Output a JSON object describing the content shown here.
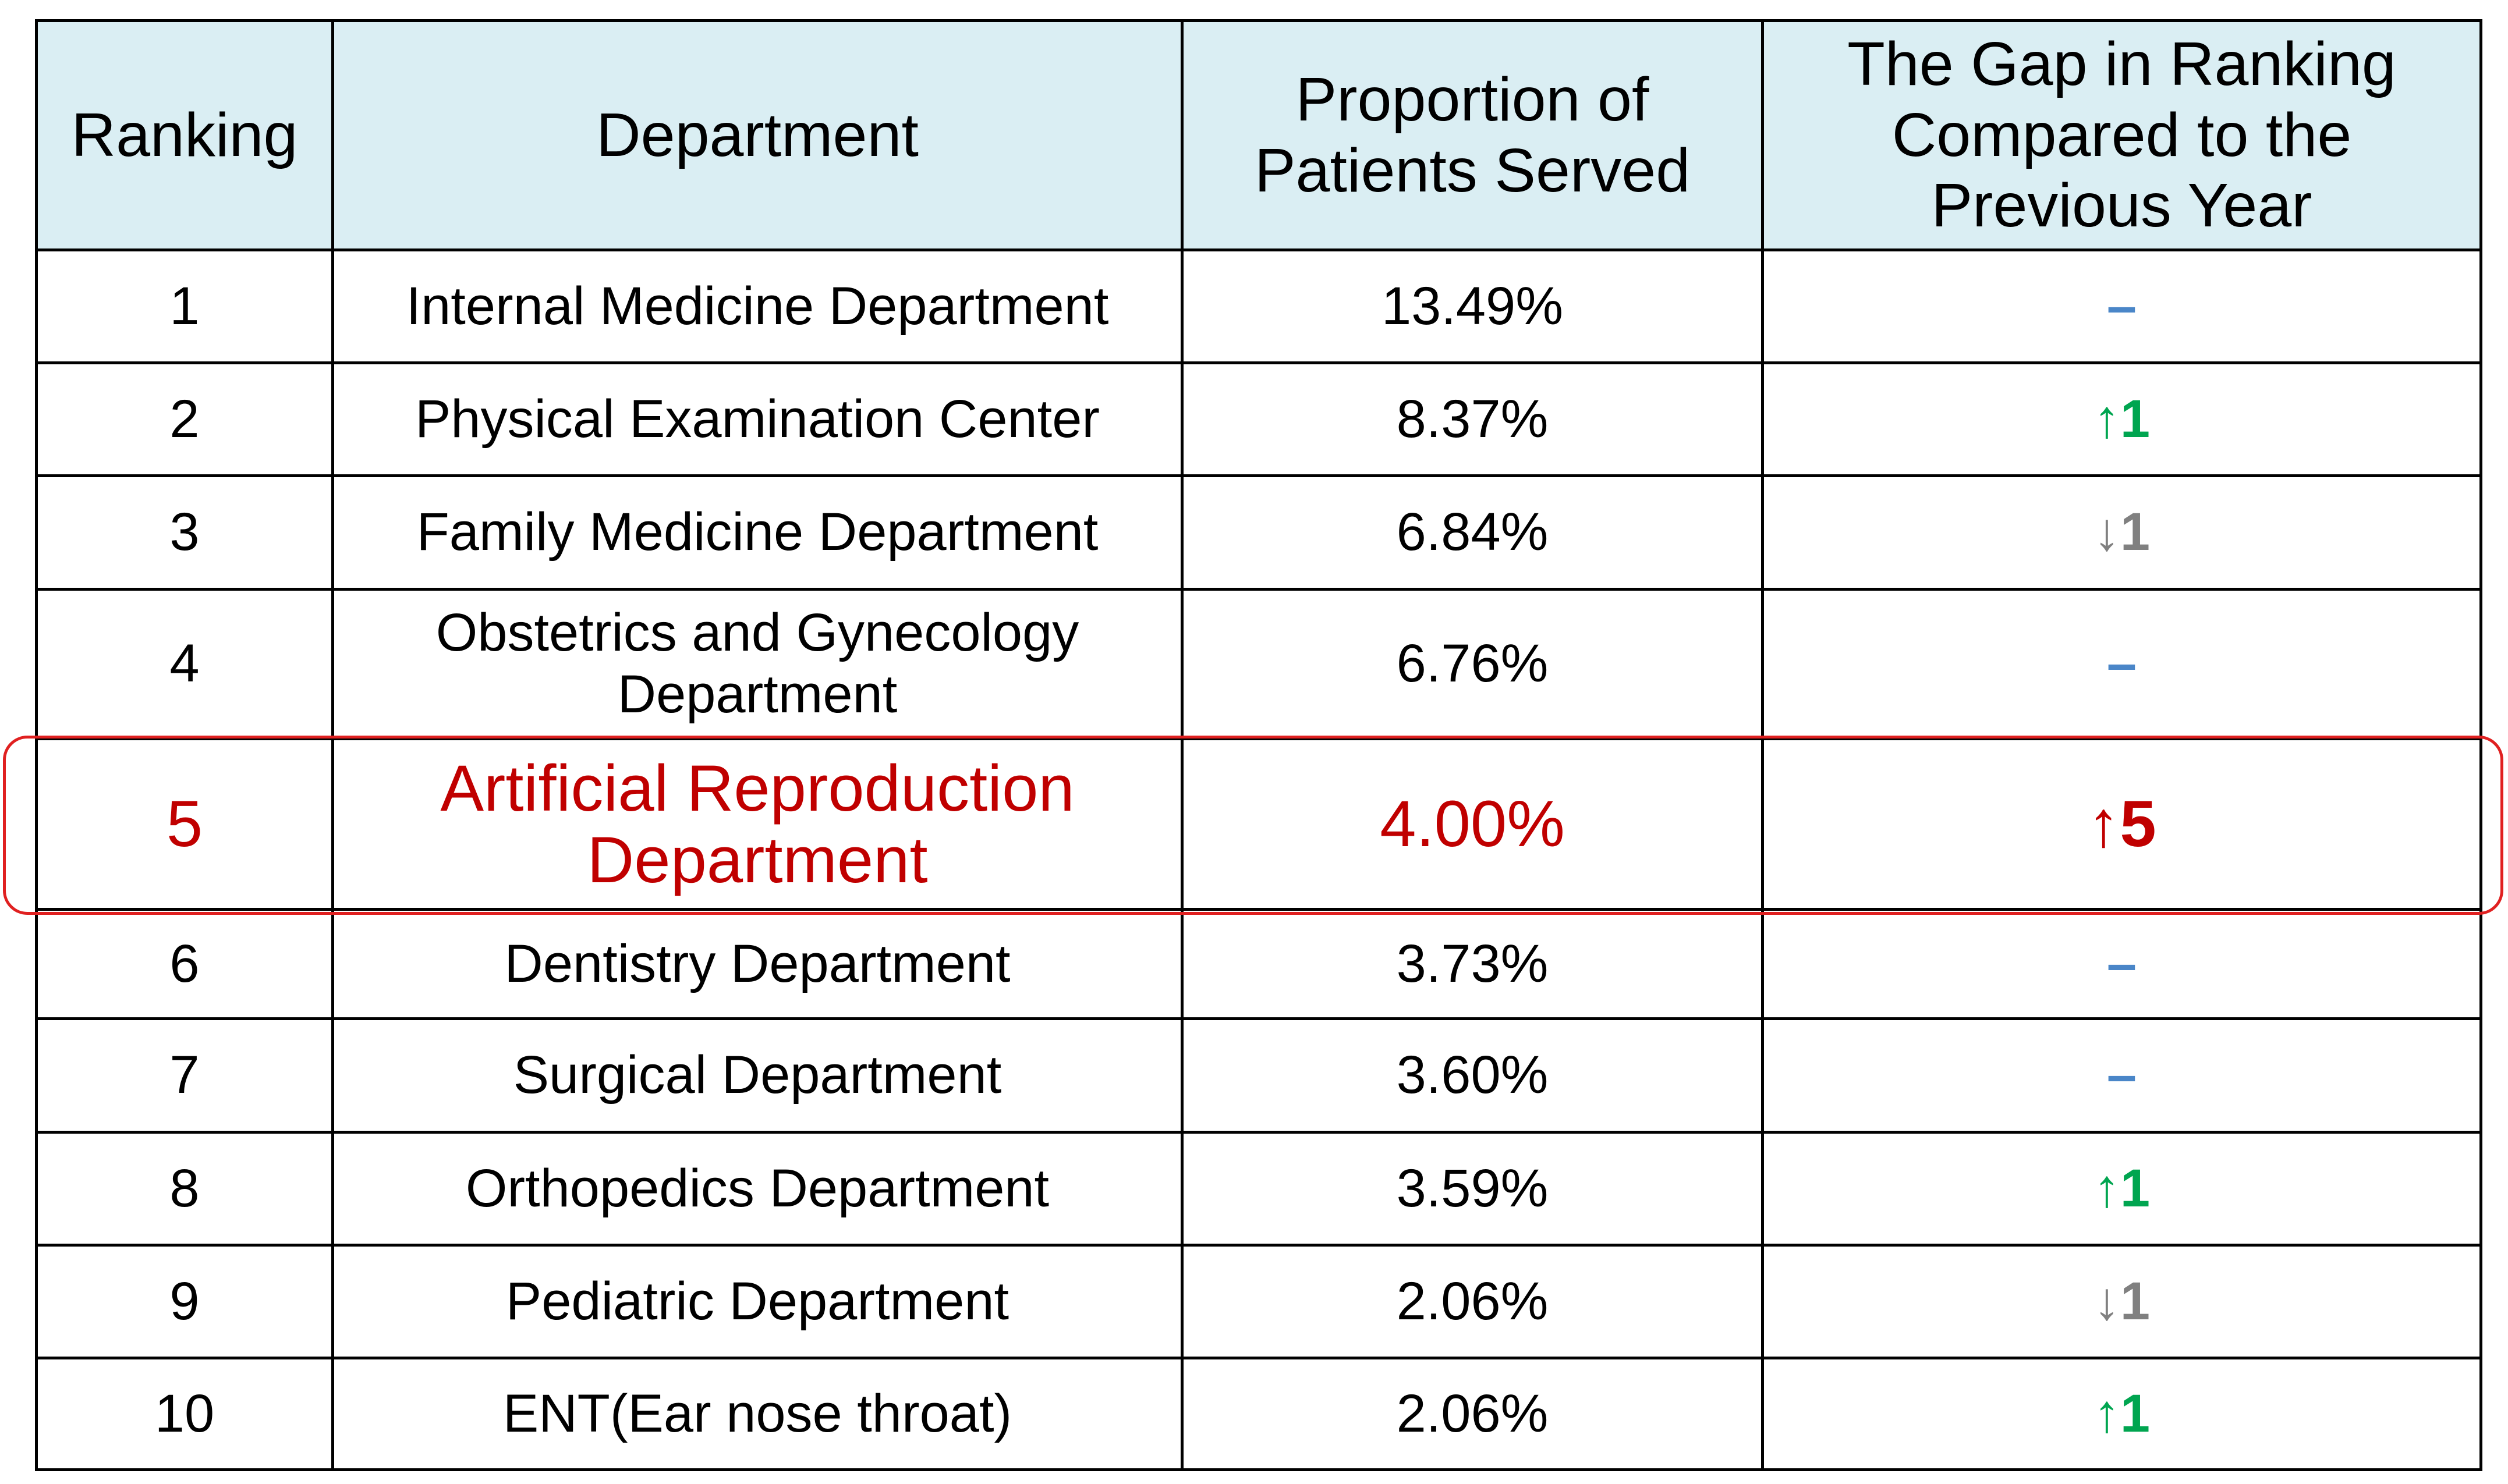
{
  "table": {
    "header": [
      "Ranking",
      "Department",
      "Proportion  of Patients Served",
      "The Gap in Ranking Compared to the Previous Year"
    ],
    "header_color": "#daeef3",
    "rows": [
      {
        "ranking": "1",
        "department": "Internal Medicine Department",
        "proportion": "13.49%",
        "gap": "–",
        "gap_color": "#4a86c8"
      },
      {
        "ranking": "2",
        "department": "Physical Examination Center",
        "proportion": "8.37%",
        "gap": "↑1",
        "gap_color": "#00a550"
      },
      {
        "ranking": "3",
        "department": "Family Medicine Department",
        "proportion": "6.84%",
        "gap": "↓1",
        "gap_color": "#808080"
      },
      {
        "ranking": "4",
        "department": "Obstetrics and Gynecology Department",
        "proportion": "6.76%",
        "gap": "–",
        "gap_color": "#4a86c8"
      },
      {
        "ranking": "5",
        "department": "Artificial Reproduction Department",
        "proportion": "4.00%",
        "gap": "↑5",
        "gap_color": "#c00000",
        "color": "#c00000"
      },
      {
        "ranking": "6",
        "department": "Dentistry Department",
        "proportion": "3.73%",
        "gap": "–",
        "gap_color": "#4a86c8"
      },
      {
        "ranking": "7",
        "department": "Surgical Department",
        "proportion": "3.60%",
        "gap": "–",
        "gap_color": "#4a86c8"
      },
      {
        "ranking": "8",
        "department": "Orthopedics Department",
        "proportion": "3.59%",
        "gap": "↑1",
        "gap_color": "#00a550"
      },
      {
        "ranking": "9",
        "department": "Pediatric Department",
        "proportion": "2.06%",
        "gap": "↓1",
        "gap_color": "#808080"
      },
      {
        "ranking": "10",
        "department": "ENT(Ear nose throat)",
        "proportion": "2.06%",
        "gap": "↑1",
        "gap_color": "#00a550"
      }
    ]
  }
}
